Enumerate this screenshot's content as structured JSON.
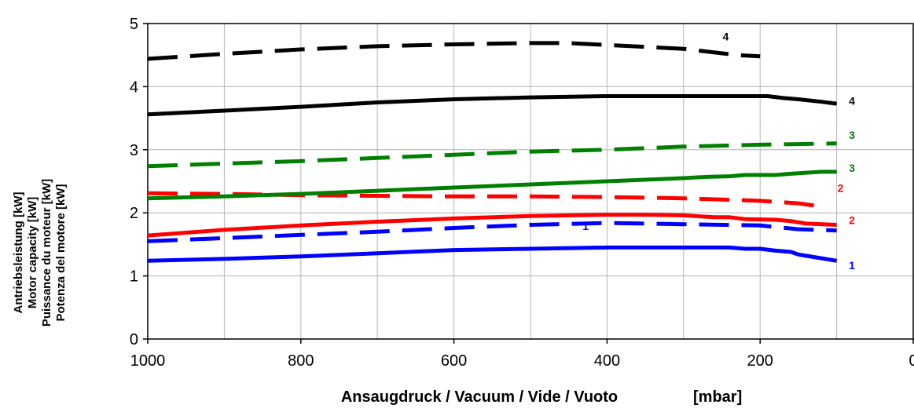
{
  "chart_data": {
    "type": "line",
    "title": "",
    "xlabel": "Ansaugdruck / Vacuum / Vide / Vuoto",
    "xlabel_unit": "[mbar]",
    "ylabel_lines": [
      "Antriebsleistung [kW]",
      "Motor capacity [kW]",
      "Puissance du moteur [kW]",
      "Potenza del motore [kW]"
    ],
    "xlim": [
      1000,
      0
    ],
    "ylim": [
      0,
      5
    ],
    "x_ticks": [
      "1000",
      "800",
      "600",
      "400",
      "200",
      "0"
    ],
    "y_ticks": [
      "0",
      "1",
      "2",
      "3",
      "4",
      "5"
    ],
    "x_tick_values": [
      1000,
      800,
      600,
      400,
      200,
      0
    ],
    "y_tick_values": [
      0,
      1,
      2,
      3,
      4,
      5
    ],
    "grid": true,
    "x_minor_grid_step": 100,
    "series": [
      {
        "name": "1",
        "color": "#0000ff",
        "dashed": false,
        "points": [
          [
            1000,
            1.24
          ],
          [
            900,
            1.27
          ],
          [
            800,
            1.31
          ],
          [
            700,
            1.36
          ],
          [
            600,
            1.41
          ],
          [
            500,
            1.43
          ],
          [
            400,
            1.45
          ],
          [
            300,
            1.45
          ],
          [
            240,
            1.45
          ],
          [
            220,
            1.43
          ],
          [
            200,
            1.43
          ],
          [
            180,
            1.4
          ],
          [
            160,
            1.38
          ],
          [
            150,
            1.34
          ],
          [
            130,
            1.3
          ],
          [
            100,
            1.24
          ]
        ]
      },
      {
        "name": "1",
        "color": "#0000ff",
        "dashed": true,
        "points": [
          [
            1000,
            1.55
          ],
          [
            900,
            1.6
          ],
          [
            800,
            1.65
          ],
          [
            700,
            1.7
          ],
          [
            600,
            1.76
          ],
          [
            500,
            1.81
          ],
          [
            400,
            1.84
          ],
          [
            300,
            1.82
          ],
          [
            200,
            1.8
          ],
          [
            150,
            1.74
          ],
          [
            100,
            1.72
          ]
        ]
      },
      {
        "name": "2",
        "color": "#ff0000",
        "dashed": false,
        "points": [
          [
            1000,
            1.64
          ],
          [
            900,
            1.73
          ],
          [
            800,
            1.8
          ],
          [
            700,
            1.86
          ],
          [
            600,
            1.91
          ],
          [
            500,
            1.95
          ],
          [
            400,
            1.97
          ],
          [
            350,
            1.97
          ],
          [
            300,
            1.96
          ],
          [
            260,
            1.93
          ],
          [
            240,
            1.93
          ],
          [
            220,
            1.9
          ],
          [
            180,
            1.89
          ],
          [
            160,
            1.87
          ],
          [
            140,
            1.83
          ],
          [
            100,
            1.81
          ]
        ]
      },
      {
        "name": "2",
        "color": "#ff0000",
        "dashed": true,
        "points": [
          [
            1000,
            2.31
          ],
          [
            900,
            2.3
          ],
          [
            800,
            2.28
          ],
          [
            700,
            2.27
          ],
          [
            600,
            2.26
          ],
          [
            500,
            2.26
          ],
          [
            400,
            2.25
          ],
          [
            300,
            2.23
          ],
          [
            200,
            2.19
          ],
          [
            150,
            2.15
          ],
          [
            120,
            2.1
          ]
        ]
      },
      {
        "name": "3",
        "color": "#008000",
        "dashed": false,
        "points": [
          [
            1000,
            2.23
          ],
          [
            900,
            2.26
          ],
          [
            800,
            2.3
          ],
          [
            700,
            2.35
          ],
          [
            600,
            2.4
          ],
          [
            500,
            2.45
          ],
          [
            400,
            2.5
          ],
          [
            300,
            2.55
          ],
          [
            270,
            2.57
          ],
          [
            240,
            2.58
          ],
          [
            220,
            2.6
          ],
          [
            180,
            2.6
          ],
          [
            160,
            2.62
          ],
          [
            120,
            2.65
          ],
          [
            100,
            2.65
          ]
        ]
      },
      {
        "name": "3",
        "color": "#008000",
        "dashed": true,
        "points": [
          [
            1000,
            2.74
          ],
          [
            900,
            2.78
          ],
          [
            800,
            2.82
          ],
          [
            700,
            2.87
          ],
          [
            600,
            2.92
          ],
          [
            500,
            2.97
          ],
          [
            400,
            3.0
          ],
          [
            300,
            3.05
          ],
          [
            200,
            3.08
          ],
          [
            100,
            3.1
          ]
        ]
      },
      {
        "name": "4",
        "color": "#000000",
        "dashed": false,
        "points": [
          [
            1000,
            3.56
          ],
          [
            900,
            3.62
          ],
          [
            800,
            3.68
          ],
          [
            700,
            3.75
          ],
          [
            600,
            3.8
          ],
          [
            500,
            3.83
          ],
          [
            400,
            3.85
          ],
          [
            300,
            3.85
          ],
          [
            190,
            3.85
          ],
          [
            170,
            3.82
          ],
          [
            150,
            3.8
          ],
          [
            120,
            3.76
          ],
          [
            100,
            3.73
          ]
        ]
      },
      {
        "name": "4",
        "color": "#000000",
        "dashed": true,
        "points": [
          [
            1000,
            4.44
          ],
          [
            900,
            4.52
          ],
          [
            800,
            4.59
          ],
          [
            700,
            4.64
          ],
          [
            600,
            4.67
          ],
          [
            500,
            4.69
          ],
          [
            450,
            4.69
          ],
          [
            400,
            4.66
          ],
          [
            300,
            4.6
          ],
          [
            230,
            4.5
          ],
          [
            200,
            4.48
          ]
        ]
      }
    ],
    "labels": [
      {
        "text": "4",
        "color": "#000000",
        "x": 245,
        "y": 4.73
      },
      {
        "text": "4",
        "color": "#000000",
        "x": 80,
        "y": 3.71
      },
      {
        "text": "3",
        "color": "#008000",
        "x": 80,
        "y": 3.17
      },
      {
        "text": "3",
        "color": "#008000",
        "x": 80,
        "y": 2.65
      },
      {
        "text": "2",
        "color": "#ff0000",
        "x": 95,
        "y": 2.33
      },
      {
        "text": "2",
        "color": "#ff0000",
        "x": 80,
        "y": 1.82
      },
      {
        "text": "1",
        "color": "#0000ff",
        "x": 428,
        "y": 1.73
      },
      {
        "text": "1",
        "color": "#0000ff",
        "x": 80,
        "y": 1.11
      }
    ]
  }
}
